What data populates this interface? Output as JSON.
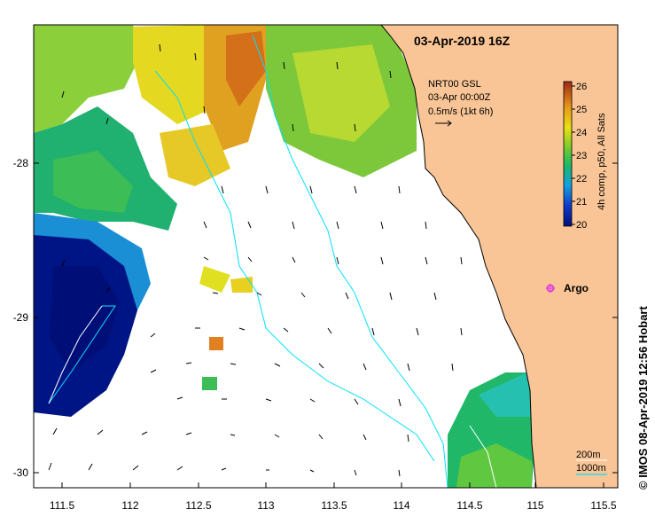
{
  "map": {
    "title": "03-Apr-2019 16Z",
    "credit": "© IMOS 08-Apr-2019 12:56 Hobart",
    "x_ticks": [
      "111.5",
      "112",
      "112.5",
      "113",
      "113.5",
      "114",
      "114.5",
      "115",
      "115.5"
    ],
    "y_ticks": [
      "-28",
      "-29",
      "-30"
    ],
    "current_info": {
      "line1": "NRT00 GSL",
      "line2": "03-Apr 00:00Z",
      "line3": "0.5m/s (1kt 6h)"
    },
    "colorbar": {
      "label": "4h comp, p50, All Sats",
      "ticks": [
        "26",
        "25",
        "24",
        "23",
        "22",
        "21",
        "20"
      ]
    },
    "marker": {
      "label": "Argo",
      "color": "#e040e0"
    },
    "depth_legend": {
      "label_200": "200m",
      "label_1000": "1000m"
    },
    "colors": {
      "land": "#f9c596",
      "contour": "#00e0ff",
      "cold": "#00107a",
      "warm": "#d9661a"
    }
  }
}
